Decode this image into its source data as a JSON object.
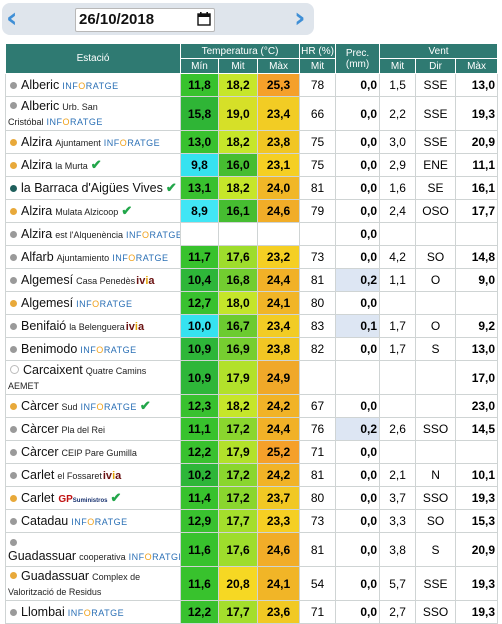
{
  "date": {
    "value": "26/10/2018"
  },
  "headers": {
    "station": "Estació",
    "temperature": "Temperatura (°C)",
    "humidity": "HR (%)",
    "precip": "Prec. (mm)",
    "wind": "Vent",
    "t_min": "Mín",
    "t_mit": "Mit",
    "t_max": "Màx",
    "h_mit": "Mit",
    "w_mit": "Mit",
    "w_dir": "Dir",
    "w_max": "Màx"
  },
  "colors": {
    "header": "#2f7a72",
    "dot_gray": "#9a9a9a",
    "dot_orange": "#e8a93a",
    "dot_teal": "#1f5f5c",
    "dot_white": "#ffffff"
  },
  "rows": [
    {
      "name": "Alberic",
      "sub": "",
      "tag": "inforatge",
      "check": false,
      "dot": "gray",
      "tall": false,
      "tmin": "11,8",
      "tmit": "18,2",
      "tmax": "25,3",
      "hr": "78",
      "prec": "0,0",
      "wmit": "1,5",
      "wdir": "SSE",
      "wmax": "13,0",
      "cmin": "#38c22d",
      "cmit": "#c6e62a",
      "cmax": "#f5a02a",
      "cprec": ""
    },
    {
      "name": "Alberic",
      "sub": "Urb. San Cristóbal",
      "tag": "inforatge",
      "check": false,
      "dot": "gray",
      "tall": true,
      "tmin": "15,8",
      "tmit": "19,0",
      "tmax": "23,4",
      "hr": "66",
      "prec": "0,0",
      "wmit": "2,2",
      "wdir": "SSE",
      "wmax": "19,3",
      "cmin": "#2fb536",
      "cmit": "#d6e028",
      "cmax": "#f2cc24",
      "cprec": ""
    },
    {
      "name": "Alzira",
      "sub": "Ajuntament",
      "tag": "inforatge",
      "check": false,
      "dot": "orange",
      "tall": false,
      "tmin": "13,0",
      "tmit": "18,2",
      "tmax": "23,8",
      "hr": "75",
      "prec": "0,0",
      "wmit": "3,0",
      "wdir": "SSE",
      "wmax": "20,9",
      "cmin": "#39c12f",
      "cmit": "#c6e62a",
      "cmax": "#f1c623",
      "cprec": ""
    },
    {
      "name": "Alzira",
      "sub": "la Murta",
      "tag": "",
      "check": true,
      "dot": "orange",
      "tall": false,
      "tmin": "9,8",
      "tmit": "16,0",
      "tmax": "23,1",
      "hr": "75",
      "prec": "0,0",
      "wmit": "2,9",
      "wdir": "ENE",
      "wmax": "11,1",
      "cmin": "#36e2f0",
      "cmit": "#46bd31",
      "cmax": "#f5cf23",
      "cprec": ""
    },
    {
      "name": "la Barraca d'Aigües Vives",
      "sub": "",
      "tag": "",
      "check": true,
      "dot": "teal",
      "tall": false,
      "tmin": "13,1",
      "tmit": "18,2",
      "tmax": "24,0",
      "hr": "81",
      "prec": "0,0",
      "wmit": "1,6",
      "wdir": "SE",
      "wmax": "16,1",
      "cmin": "#39c12f",
      "cmit": "#c6e62a",
      "cmax": "#f1b727",
      "cprec": ""
    },
    {
      "name": "Alzira",
      "sub": "Mulata Alzicoop",
      "tag": "",
      "check": true,
      "dot": "orange",
      "tall": false,
      "tmin": "8,9",
      "tmit": "16,1",
      "tmax": "24,6",
      "hr": "79",
      "prec": "0,0",
      "wmit": "2,4",
      "wdir": "OSO",
      "wmax": "17,7",
      "cmin": "#41e6f5",
      "cmit": "#46bd31",
      "cmax": "#f1ad28",
      "cprec": ""
    },
    {
      "name": "Alzira",
      "sub": "est l'Alquenència",
      "tag": "inforatge",
      "check": false,
      "dot": "gray",
      "tall": false,
      "tmin": "",
      "tmit": "",
      "tmax": "",
      "hr": "",
      "prec": "0,0",
      "wmit": "",
      "wdir": "",
      "wmax": "",
      "cmin": "",
      "cmit": "",
      "cmax": "",
      "cprec": ""
    },
    {
      "name": "Alfarb",
      "sub": "Ajuntamiento",
      "tag": "inforatge",
      "check": false,
      "dot": "gray",
      "tall": false,
      "tmin": "11,7",
      "tmit": "17,6",
      "tmax": "23,2",
      "hr": "73",
      "prec": "0,0",
      "wmit": "4,2",
      "wdir": "SO",
      "wmax": "14,8",
      "cmin": "#38c22d",
      "cmit": "#9edd2c",
      "cmax": "#f5cf23",
      "cprec": ""
    },
    {
      "name": "Algemesí",
      "sub": "Casa Penedès",
      "tag": "ivia",
      "check": false,
      "dot": "gray",
      "tall": false,
      "tmin": "10,4",
      "tmit": "16,8",
      "tmax": "24,4",
      "hr": "81",
      "prec": "0,2",
      "wmit": "1,1",
      "wdir": "O",
      "wmax": "9,0",
      "cmin": "#2eb639",
      "cmit": "#72cd30",
      "cmax": "#f1b127",
      "cprec": "#dde6f3"
    },
    {
      "name": "Algemesí",
      "sub": "",
      "tag": "inforatge",
      "check": false,
      "dot": "orange",
      "tall": false,
      "tmin": "12,7",
      "tmit": "18,0",
      "tmax": "24,1",
      "hr": "80",
      "prec": "0,0",
      "wmit": "",
      "wdir": "",
      "wmax": "",
      "cmin": "#39c12f",
      "cmit": "#c4e52a",
      "cmax": "#f1b527",
      "cprec": ""
    },
    {
      "name": "Benifaió",
      "sub": "la Belenguera",
      "tag": "ivia",
      "check": false,
      "dot": "gray",
      "tall": false,
      "tmin": "10,0",
      "tmit": "16,7",
      "tmax": "23,4",
      "hr": "83",
      "prec": "0,1",
      "wmit": "1,7",
      "wdir": "O",
      "wmax": "9,2",
      "cmin": "#36e2f0",
      "cmit": "#6ccb30",
      "cmax": "#f2cc24",
      "cprec": "#dde6f3"
    },
    {
      "name": "Benimodo",
      "sub": "",
      "tag": "inforatge",
      "check": false,
      "dot": "gray",
      "tall": false,
      "tmin": "10,9",
      "tmit": "16,9",
      "tmax": "23,8",
      "hr": "82",
      "prec": "0,0",
      "wmit": "1,7",
      "wdir": "S",
      "wmax": "13,0",
      "cmin": "#2eb639",
      "cmit": "#76ce30",
      "cmax": "#f1c623",
      "cprec": ""
    },
    {
      "name": "Carcaixent",
      "sub": "Quatre Camins AEMET",
      "tag": "",
      "check": false,
      "dot": "white",
      "tall": true,
      "tmin": "10,9",
      "tmit": "17,9",
      "tmax": "24,9",
      "hr": "",
      "prec": "",
      "wmit": "",
      "wdir": "",
      "wmax": "17,0",
      "cmin": "#2eb639",
      "cmit": "#b2e12b",
      "cmax": "#f0a829",
      "cprec": ""
    },
    {
      "name": "Càrcer",
      "sub": "Sud",
      "tag": "inforatge",
      "check": true,
      "dot": "orange",
      "tall": false,
      "tmin": "12,3",
      "tmit": "18,2",
      "tmax": "24,2",
      "hr": "67",
      "prec": "0,0",
      "wmit": "",
      "wdir": "",
      "wmax": "23,0",
      "cmin": "#39c12f",
      "cmit": "#c6e62a",
      "cmax": "#f1b327",
      "cprec": ""
    },
    {
      "name": "Càrcer",
      "sub": "Pla del Rei",
      "tag": "",
      "check": false,
      "dot": "gray",
      "tall": false,
      "tmin": "11,1",
      "tmit": "17,2",
      "tmax": "24,4",
      "hr": "76",
      "prec": "0,2",
      "wmit": "2,6",
      "wdir": "SSO",
      "wmax": "14,5",
      "cmin": "#38c22d",
      "cmit": "#8ad62e",
      "cmax": "#f1b127",
      "cprec": "#dde6f3"
    },
    {
      "name": "Càrcer",
      "sub": "CEIP Pare Gumilla",
      "tag": "",
      "check": false,
      "dot": "gray",
      "tall": false,
      "tmin": "12,2",
      "tmit": "17,9",
      "tmax": "25,2",
      "hr": "71",
      "prec": "0,0",
      "wmit": "",
      "wdir": "",
      "wmax": "",
      "cmin": "#39c12f",
      "cmit": "#b2e12b",
      "cmax": "#f5a02a",
      "cprec": ""
    },
    {
      "name": "Carlet",
      "sub": "el Fossaret",
      "tag": "ivia",
      "check": false,
      "dot": "gray",
      "tall": false,
      "tmin": "10,2",
      "tmit": "17,2",
      "tmax": "24,2",
      "hr": "81",
      "prec": "0,0",
      "wmit": "2,1",
      "wdir": "N",
      "wmax": "10,1",
      "cmin": "#2eb639",
      "cmit": "#8ad62e",
      "cmax": "#f1b327",
      "cprec": ""
    },
    {
      "name": "Carlet",
      "sub": "",
      "tag": "gp",
      "check": true,
      "dot": "orange",
      "tall": false,
      "tmin": "11,4",
      "tmit": "17,2",
      "tmax": "23,7",
      "hr": "80",
      "prec": "0,0",
      "wmit": "3,7",
      "wdir": "SSO",
      "wmax": "19,3",
      "cmin": "#38c22d",
      "cmit": "#8ad62e",
      "cmax": "#f1c823",
      "cprec": ""
    },
    {
      "name": "Catadau",
      "sub": "",
      "tag": "inforatge",
      "check": false,
      "dot": "gray",
      "tall": false,
      "tmin": "12,9",
      "tmit": "17,7",
      "tmax": "23,3",
      "hr": "73",
      "prec": "0,0",
      "wmit": "3,3",
      "wdir": "SO",
      "wmax": "15,3",
      "cmin": "#39c12f",
      "cmit": "#a4de2c",
      "cmax": "#f5cf23",
      "cprec": ""
    },
    {
      "name": "Guadassuar",
      "sub": "cooperativa",
      "tag": "inforatge",
      "check": false,
      "dot": "gray",
      "tall": true,
      "tmin": "11,6",
      "tmit": "17,6",
      "tmax": "24,6",
      "hr": "81",
      "prec": "0,0",
      "wmit": "3,8",
      "wdir": "S",
      "wmax": "20,9",
      "cmin": "#38c22d",
      "cmit": "#9edd2c",
      "cmax": "#f1ad28",
      "cprec": ""
    },
    {
      "name": "Guadassuar",
      "sub": "Complex de Valorització de Residus",
      "tag": "",
      "check": false,
      "dot": "orange",
      "tall": true,
      "tmin": "11,6",
      "tmit": "20,8",
      "tmax": "24,1",
      "hr": "54",
      "prec": "0,0",
      "wmit": "5,7",
      "wdir": "SSE",
      "wmax": "19,3",
      "cmin": "#38c22d",
      "cmit": "#f6d823",
      "cmax": "#f1b527",
      "cprec": ""
    },
    {
      "name": "Llombai",
      "sub": "",
      "tag": "inforatge",
      "check": false,
      "dot": "gray",
      "tall": false,
      "tmin": "12,2",
      "tmit": "17,7",
      "tmax": "23,6",
      "hr": "71",
      "prec": "0,0",
      "wmit": "2,7",
      "wdir": "SSO",
      "wmax": "19,3",
      "cmin": "#39c12f",
      "cmit": "#a4de2c",
      "cmax": "#f1c923",
      "cprec": ""
    }
  ]
}
